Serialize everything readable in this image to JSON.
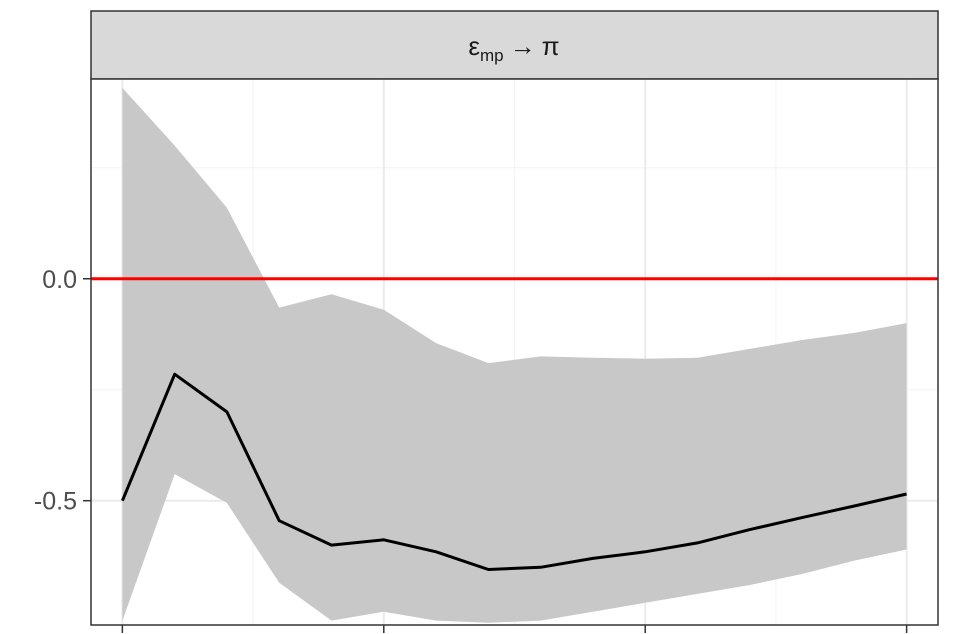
{
  "chart_data": {
    "type": "line",
    "facet_label": {
      "symbol": "ε",
      "subscript": "mp",
      "arrow": "→",
      "target": "π"
    },
    "x": [
      0,
      1,
      2,
      3,
      4,
      5,
      6,
      7,
      8,
      9,
      10,
      11,
      12,
      13,
      14,
      15
    ],
    "xlim": [
      -0.6,
      15.6
    ],
    "xticks_major": [
      0,
      5,
      10,
      15
    ],
    "xticks_minor": [
      2.5,
      7.5,
      12.5
    ],
    "ylim": [
      -0.78,
      0.45
    ],
    "yticks": [
      {
        "value": 0.0,
        "label": "0.0"
      },
      {
        "value": -0.5,
        "label": "-0.5"
      }
    ],
    "yticks_minor": [
      0.25,
      -0.25
    ],
    "series": [
      {
        "role": "point-estimate",
        "color": "#000000",
        "values": [
          -0.5,
          -0.215,
          -0.3,
          -0.545,
          -0.6,
          -0.588,
          -0.615,
          -0.655,
          -0.65,
          -0.63,
          -0.615,
          -0.595,
          -0.565,
          -0.538,
          -0.512,
          -0.485
        ]
      }
    ],
    "band": {
      "color": "#c8c8c8",
      "lower": [
        -0.77,
        -0.44,
        -0.505,
        -0.685,
        -0.77,
        -0.75,
        -0.77,
        -0.775,
        -0.77,
        -0.75,
        -0.73,
        -0.71,
        -0.69,
        -0.665,
        -0.635,
        -0.61
      ],
      "upper": [
        0.43,
        0.3,
        0.16,
        -0.065,
        -0.035,
        -0.07,
        -0.145,
        -0.19,
        -0.175,
        -0.178,
        -0.18,
        -0.178,
        -0.158,
        -0.138,
        -0.122,
        -0.1
      ]
    },
    "reference_line": {
      "y": 0.0,
      "color": "#ff0000"
    },
    "grid": true,
    "colors": {
      "panel_border": "#333333",
      "strip_fill": "#d9d9d9",
      "grid_major": "#ebebeb",
      "grid_minor": "#f5f5f5",
      "tick_text": "#4d4d4d"
    }
  }
}
